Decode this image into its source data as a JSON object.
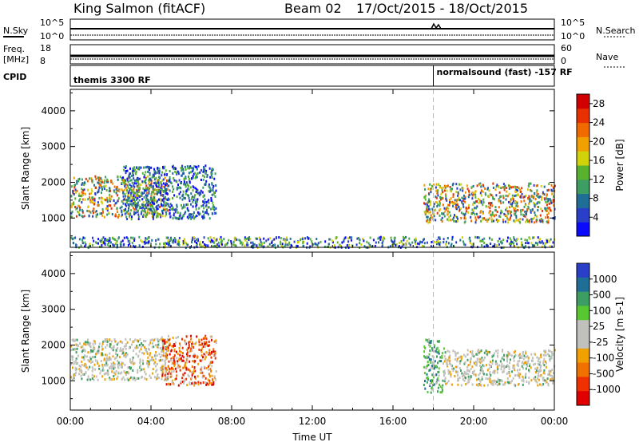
{
  "header": {
    "station": "King Salmon (fitACF)",
    "beam": "Beam 02",
    "dates": "17/Oct/2015 - 18/Oct/2015"
  },
  "side_labels": {
    "nsky": "N.Sky",
    "nsky_top": "10^5",
    "nsky_bot": "10^0",
    "nsearch": "N.Search",
    "nsearch_top": "10^5",
    "nsearch_bot": "10^0",
    "freq": "Freq.",
    "mhz": "[MHz]",
    "freq_top": "18",
    "freq_bot": "8",
    "nave": "Nave",
    "nave_top": "60",
    "nave_bot": "0",
    "cpid": "CPID"
  },
  "cpid_segments": [
    {
      "label": "themis 3300 RF",
      "start_hour": 0
    },
    {
      "label": "normalsound (fast) -157 RF",
      "start_hour": 18
    }
  ],
  "chart_data": [
    {
      "type": "heatmap",
      "name": "power-panel",
      "xlabel": "Time UT",
      "ylabel": "Slant Range [km]",
      "xlim": [
        0,
        24
      ],
      "ylim": [
        180,
        4600
      ],
      "x_ticks": [
        "00:00",
        "04:00",
        "08:00",
        "12:00",
        "16:00",
        "20:00",
        "00:00"
      ],
      "y_ticks": [
        1000,
        2000,
        3000,
        4000
      ],
      "colorbar": {
        "label": "Power [dB]",
        "ticks": [
          4,
          8,
          12,
          16,
          20,
          24,
          28
        ],
        "range": [
          0,
          30
        ]
      },
      "regions": [
        {
          "hours": [
            0,
            4.8
          ],
          "range_km": [
            1050,
            2200
          ],
          "level": "high"
        },
        {
          "hours": [
            2.5,
            7.2
          ],
          "range_km": [
            1000,
            2500
          ],
          "level": "medium"
        },
        {
          "hours": [
            17.5,
            24
          ],
          "range_km": [
            900,
            2000
          ],
          "level": "high"
        },
        {
          "hours": [
            0,
            24
          ],
          "range_km": [
            200,
            500
          ],
          "level": "low"
        }
      ]
    },
    {
      "type": "heatmap",
      "name": "velocity-panel",
      "xlabel": "Time UT",
      "ylabel": "Slant Range [km]",
      "xlim": [
        0,
        24
      ],
      "ylim": [
        180,
        4600
      ],
      "x_ticks": [
        "00:00",
        "04:00",
        "08:00",
        "12:00",
        "16:00",
        "20:00",
        "00:00"
      ],
      "y_ticks": [
        1000,
        2000,
        3000,
        4000
      ],
      "colorbar": {
        "label": "Velocity [m s-1]",
        "ticks": [
          "1000",
          "500",
          "100",
          "25",
          "-25",
          "-100",
          "-500",
          "-1000"
        ]
      },
      "regions": [
        {
          "hours": [
            0,
            4.8
          ],
          "range_km": [
            1050,
            2200
          ],
          "velocity": "-25 to 25"
        },
        {
          "hours": [
            4.5,
            7.2
          ],
          "range_km": [
            900,
            2300
          ],
          "velocity": "-500 to -100"
        },
        {
          "hours": [
            17.5,
            18.5
          ],
          "range_km": [
            700,
            2200
          ],
          "velocity": "100 to 500"
        },
        {
          "hours": [
            18.5,
            24
          ],
          "range_km": [
            900,
            1900
          ],
          "velocity": "-25 to 25"
        }
      ]
    }
  ]
}
